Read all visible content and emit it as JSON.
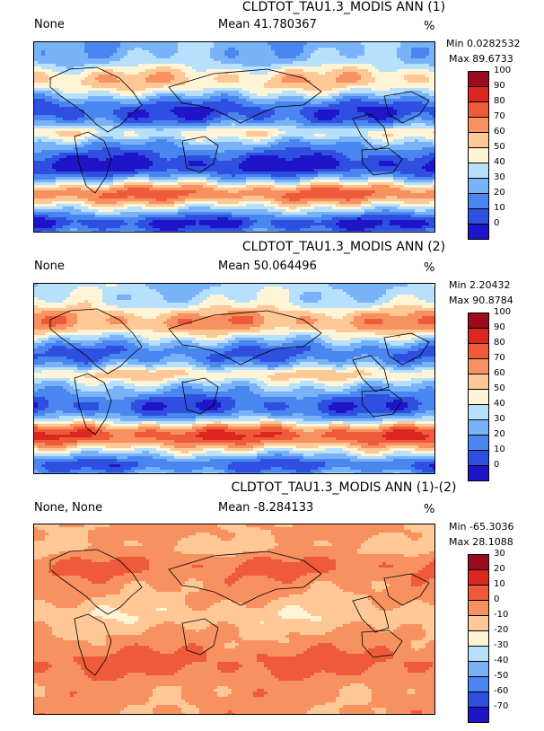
{
  "colors": {
    "ramp": [
      "#1e14c8",
      "#2f4fe0",
      "#4a86f0",
      "#79b2f7",
      "#b6e0fb",
      "#fff5d6",
      "#fdc796",
      "#f7915f",
      "#ef5a3a",
      "#dc2620",
      "#9c0a1e"
    ]
  },
  "panels": [
    {
      "title": "CLDTOT_TAU1.3_MODIS ANN (1)",
      "left_label": "None",
      "mean": "Mean 41.780367",
      "units": "%",
      "min": "Min 0.0282532",
      "max": "Max 89.6733",
      "ticks": [
        "100",
        "90",
        "80",
        "70",
        "60",
        "50",
        "40",
        "30",
        "20",
        "10",
        "0"
      ],
      "field": "test"
    },
    {
      "title": "CLDTOT_TAU1.3_MODIS ANN (2)",
      "left_label": "None",
      "mean": "Mean 50.064496",
      "units": "%",
      "min": "Min 2.20432",
      "max": "Max 90.8784",
      "ticks": [
        "100",
        "90",
        "80",
        "70",
        "60",
        "50",
        "40",
        "30",
        "20",
        "10",
        "0"
      ],
      "field": "ref"
    },
    {
      "title": "CLDTOT_TAU1.3_MODIS ANN (1)-(2)",
      "left_label": "None, None",
      "mean": "Mean -8.284133",
      "units": "%",
      "min": "Min -65.3036",
      "max": "Max 28.1088",
      "ticks": [
        "30",
        "20",
        "10",
        "0",
        "-10",
        "-20",
        "-30",
        "-40",
        "-50",
        "-60",
        "-70"
      ],
      "field": "diff"
    }
  ]
}
